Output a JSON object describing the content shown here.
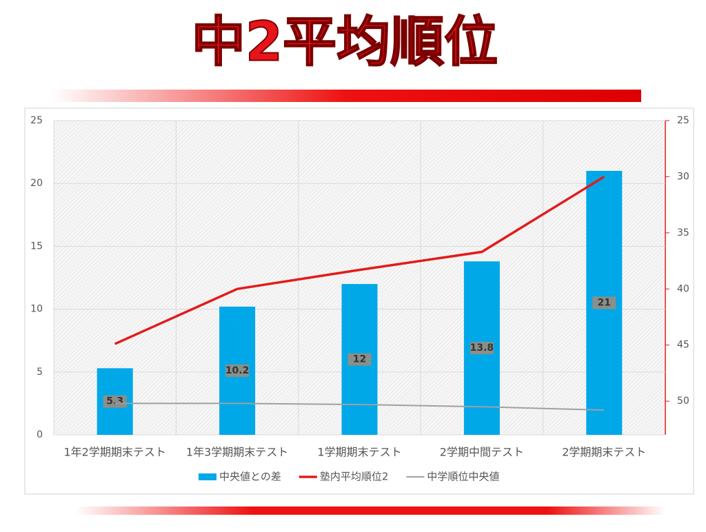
{
  "chart_data": {
    "type": "bar-line",
    "title": "中2平均順位",
    "categories": [
      "1年2学期期末テスト",
      "1年3学期期末テスト",
      "1学期期末テスト",
      "2学期中間テスト",
      "2学期期末テスト"
    ],
    "series": [
      {
        "name": "中央値との差",
        "type": "bar",
        "color": "#00a8e8",
        "values": [
          5.3,
          10.2,
          12,
          13.8,
          21
        ]
      },
      {
        "name": "塾内平均順位2",
        "type": "line",
        "axis": "y2",
        "color": "#e31b1b",
        "values": [
          44.9,
          40,
          38.3,
          36.7,
          30
        ]
      },
      {
        "name": "中学順位中央値",
        "type": "line",
        "axis": "y2",
        "color": "#a0a0a0",
        "values": [
          50.2,
          50.2,
          50.3,
          50.5,
          50.8
        ]
      }
    ],
    "ylim": [
      0,
      25
    ],
    "yticks": [
      0,
      5,
      10,
      15,
      20,
      25
    ],
    "y2lim": [
      53,
      25
    ],
    "y2ticks": [
      25,
      30,
      35,
      40,
      45,
      50
    ],
    "grid": true,
    "legend": "bottom"
  }
}
